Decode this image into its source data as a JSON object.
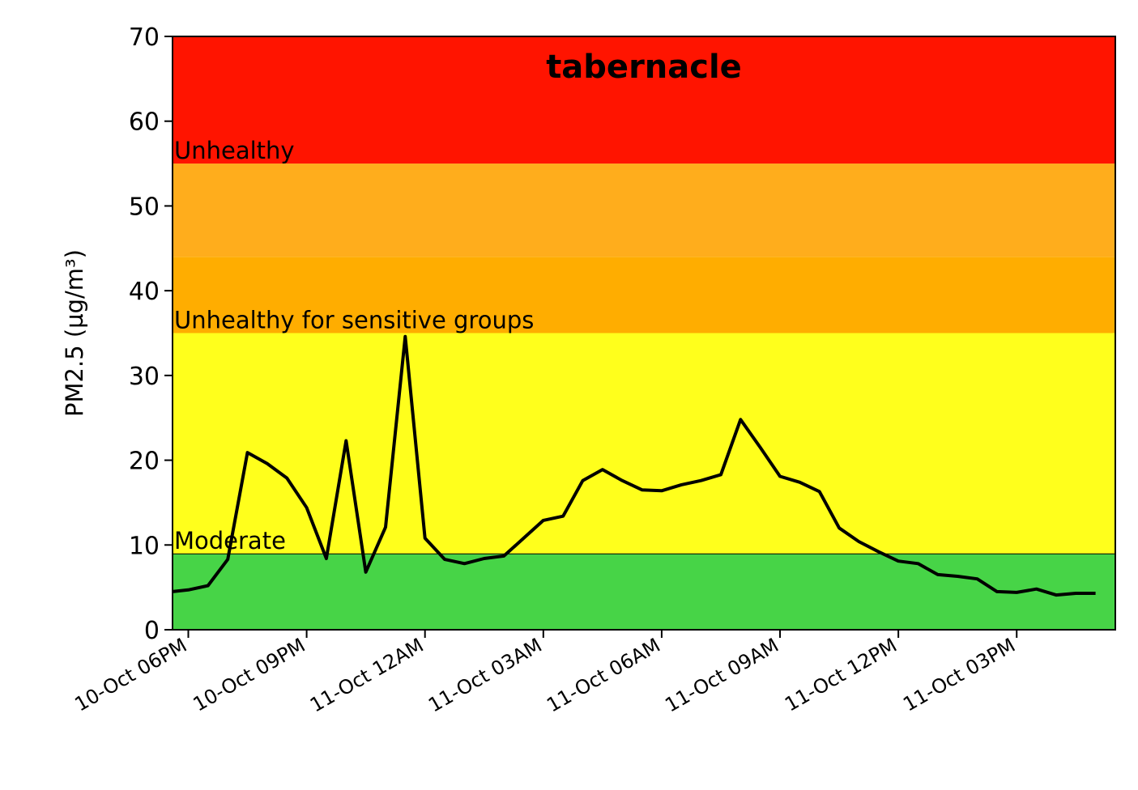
{
  "chart_data": {
    "type": "line",
    "title": "tabernacle",
    "xlabel": "",
    "ylabel": "PM2.5 (µg/m³)",
    "ylim": [
      0,
      70
    ],
    "yticks": [
      0,
      10,
      20,
      30,
      40,
      50,
      60,
      70
    ],
    "grid": false,
    "xlim_hours": [
      17.6,
      41.5
    ],
    "xticks": [
      {
        "label": "10-Oct 06PM",
        "hour": 18
      },
      {
        "label": "10-Oct 09PM",
        "hour": 21
      },
      {
        "label": "11-Oct 12AM",
        "hour": 24
      },
      {
        "label": "11-Oct 03AM",
        "hour": 27
      },
      {
        "label": "11-Oct 06AM",
        "hour": 30
      },
      {
        "label": "11-Oct 09AM",
        "hour": 33
      },
      {
        "label": "11-Oct 12PM",
        "hour": 36
      },
      {
        "label": "11-Oct 03PM",
        "hour": 39
      }
    ],
    "bands": [
      {
        "from": 0,
        "to": 9,
        "color": "#47d447",
        "label": "",
        "border": true
      },
      {
        "from": 9,
        "to": 35,
        "color": "#ffff1c",
        "label": "Moderate"
      },
      {
        "from": 35,
        "to": 44,
        "color": "#ffad00",
        "label": "Unhealthy for sensitive groups"
      },
      {
        "from": 44,
        "to": 55,
        "color": "#ffad1c",
        "label": ""
      },
      {
        "from": 55,
        "to": 70,
        "color": "#ff1400",
        "label": "Unhealthy"
      }
    ],
    "series": [
      {
        "line_color": "#000000",
        "x_hours": [
          17.6,
          18.0,
          18.5,
          19.0,
          19.5,
          20.0,
          20.5,
          21.0,
          21.5,
          22.0,
          22.5,
          23.0,
          23.5,
          24.0,
          24.5,
          25.0,
          25.5,
          26.0,
          26.5,
          27.0,
          27.5,
          28.0,
          28.5,
          29.0,
          29.5,
          30.0,
          30.5,
          31.0,
          31.5,
          32.0,
          32.5,
          33.0,
          33.5,
          34.0,
          34.5,
          35.0,
          35.5,
          36.0,
          36.5,
          37.0,
          37.5,
          38.0,
          38.5,
          39.0,
          39.5,
          40.0,
          40.5,
          41.0
        ],
        "values": [
          4.5,
          4.7,
          5.2,
          8.3,
          20.9,
          19.6,
          17.9,
          14.4,
          8.4,
          22.3,
          6.8,
          12.1,
          34.6,
          10.8,
          8.3,
          7.8,
          8.4,
          8.7,
          10.8,
          12.9,
          13.4,
          17.6,
          18.9,
          17.6,
          16.5,
          16.4,
          17.1,
          17.6,
          18.3,
          24.8,
          21.5,
          18.1,
          17.4,
          16.3,
          12.0,
          10.4,
          9.2,
          8.1,
          7.8,
          6.5,
          6.3,
          6.0,
          4.5,
          4.4,
          4.8,
          4.1,
          4.3,
          4.3
        ]
      }
    ]
  }
}
